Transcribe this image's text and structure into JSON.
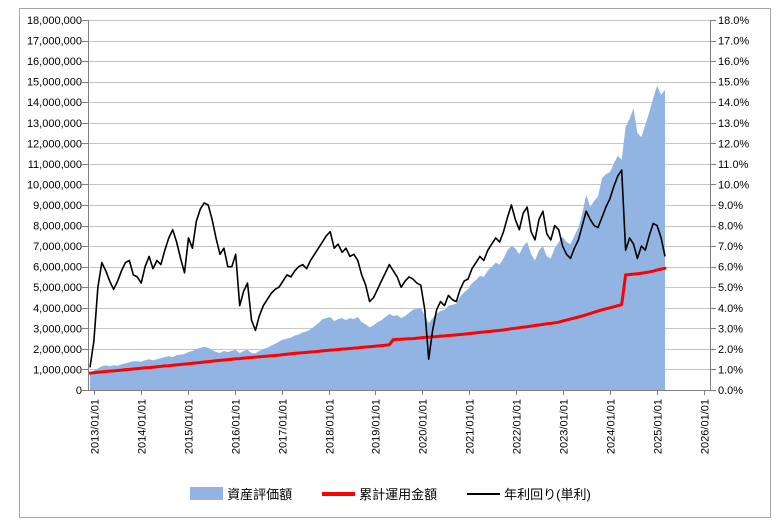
{
  "figure": {
    "kind": "excel-style combo chart",
    "background": "#FFFFFF",
    "border_color": "#A6A6A6"
  },
  "colors": {
    "area_fill": "#92B4E2",
    "invested_line": "#FF0000",
    "yield_line": "#000000",
    "gridline": "#C6C6C6",
    "axis_line": "#808080",
    "label_text": "#000000"
  },
  "chart_data": {
    "type": "area",
    "subtype": "area + 2 lines, dual y-axes",
    "grid": "horizontal",
    "legend_position": "bottom",
    "x": {
      "cadence": "monthly",
      "start": "2013-01",
      "end": "2025-03",
      "count": 147
    },
    "x_axis": {
      "tick_labels": [
        "2013/01/01",
        "2014/01/01",
        "2015/01/01",
        "2016/01/01",
        "2017/01/01",
        "2018/01/01",
        "2019/01/01",
        "2020/01/01",
        "2021/01/01",
        "2022/01/01",
        "2023/01/01",
        "2024/01/01",
        "2025/01/01",
        "2026/01/01"
      ],
      "label_rotation_deg": -90
    },
    "y_axis_left": {
      "min": 0,
      "max": 18000000,
      "step": 1000000,
      "unit": "JPY",
      "tick_labels": [
        "18,000,000",
        "17,000,000",
        "16,000,000",
        "15,000,000",
        "14,000,000",
        "13,000,000",
        "12,000,000",
        "11,000,000",
        "10,000,000",
        "9,000,000",
        "8,000,000",
        "7,000,000",
        "6,000,000",
        "5,000,000",
        "4,000,000",
        "3,000,000",
        "2,000,000",
        "1,000,000",
        "0"
      ]
    },
    "y_axis_right": {
      "min": 0,
      "max": 18,
      "step": 1,
      "unit": "%",
      "tick_labels": [
        "18.0%",
        "17.0%",
        "16.0%",
        "15.0%",
        "14.0%",
        "13.0%",
        "12.0%",
        "11.0%",
        "10.0%",
        "9.0%",
        "8.0%",
        "7.0%",
        "6.0%",
        "5.0%",
        "4.0%",
        "3.0%",
        "2.0%",
        "1.0%",
        "0.0%"
      ]
    },
    "values_unit_note": "area/red-line values in million JPY (left axis), yield values in percent (right axis)",
    "series": [
      {
        "name": "資産評価額",
        "type": "area",
        "axis": "left",
        "color": "#92B4E2",
        "values": [
          0.85,
          0.95,
          1.05,
          1.15,
          1.2,
          1.15,
          1.2,
          1.18,
          1.25,
          1.3,
          1.35,
          1.4,
          1.4,
          1.38,
          1.45,
          1.5,
          1.45,
          1.5,
          1.55,
          1.6,
          1.65,
          1.6,
          1.7,
          1.72,
          1.75,
          1.85,
          1.9,
          2.0,
          2.05,
          2.1,
          2.05,
          1.95,
          1.85,
          1.8,
          1.9,
          1.85,
          1.9,
          1.95,
          1.8,
          1.9,
          1.95,
          1.8,
          1.78,
          1.9,
          2.0,
          2.05,
          2.15,
          2.25,
          2.35,
          2.45,
          2.5,
          2.55,
          2.65,
          2.7,
          2.8,
          2.85,
          2.95,
          3.1,
          3.25,
          3.45,
          3.5,
          3.55,
          3.35,
          3.45,
          3.5,
          3.4,
          3.5,
          3.45,
          3.55,
          3.3,
          3.2,
          3.05,
          3.15,
          3.3,
          3.4,
          3.55,
          3.7,
          3.6,
          3.65,
          3.5,
          3.6,
          3.75,
          3.9,
          3.95,
          4.0,
          3.6,
          3.25,
          3.5,
          3.7,
          3.85,
          3.9,
          4.1,
          4.15,
          4.2,
          4.55,
          4.75,
          4.9,
          5.2,
          5.35,
          5.55,
          5.5,
          5.8,
          6.0,
          6.2,
          6.1,
          6.4,
          6.8,
          7.0,
          6.9,
          6.6,
          7.0,
          7.2,
          6.6,
          6.3,
          6.8,
          7.0,
          6.5,
          6.4,
          6.9,
          7.2,
          7.45,
          7.2,
          7.1,
          7.5,
          7.9,
          8.6,
          9.5,
          8.9,
          9.2,
          9.4,
          10.3,
          10.5,
          10.6,
          11.0,
          11.4,
          11.2,
          12.8,
          13.2,
          13.7,
          12.5,
          12.3,
          12.9,
          13.5,
          14.2,
          14.8,
          14.35,
          14.6
        ]
      },
      {
        "name": "累計運用金額",
        "type": "line",
        "axis": "left",
        "color": "#FF0000",
        "width": 3,
        "values": [
          0.82,
          0.84,
          0.86,
          0.88,
          0.9,
          0.92,
          0.93,
          0.95,
          0.97,
          0.99,
          1.0,
          1.02,
          1.04,
          1.06,
          1.08,
          1.09,
          1.11,
          1.13,
          1.15,
          1.17,
          1.18,
          1.2,
          1.22,
          1.24,
          1.26,
          1.28,
          1.3,
          1.32,
          1.34,
          1.36,
          1.38,
          1.4,
          1.42,
          1.44,
          1.46,
          1.48,
          1.5,
          1.52,
          1.53,
          1.55,
          1.57,
          1.58,
          1.6,
          1.62,
          1.63,
          1.65,
          1.67,
          1.68,
          1.7,
          1.72,
          1.74,
          1.76,
          1.78,
          1.8,
          1.81,
          1.83,
          1.85,
          1.86,
          1.88,
          1.9,
          1.92,
          1.94,
          1.95,
          1.97,
          1.99,
          2.0,
          2.02,
          2.04,
          2.05,
          2.07,
          2.09,
          2.1,
          2.12,
          2.14,
          2.16,
          2.18,
          2.2,
          2.45,
          2.46,
          2.47,
          2.48,
          2.49,
          2.5,
          2.52,
          2.54,
          2.56,
          2.57,
          2.59,
          2.6,
          2.62,
          2.63,
          2.65,
          2.66,
          2.68,
          2.7,
          2.72,
          2.74,
          2.76,
          2.78,
          2.8,
          2.82,
          2.84,
          2.86,
          2.88,
          2.9,
          2.92,
          2.95,
          2.98,
          3.0,
          3.03,
          3.06,
          3.08,
          3.11,
          3.14,
          3.16,
          3.19,
          3.22,
          3.24,
          3.27,
          3.3,
          3.35,
          3.4,
          3.45,
          3.5,
          3.55,
          3.6,
          3.66,
          3.72,
          3.78,
          3.84,
          3.9,
          3.95,
          4.0,
          4.05,
          4.1,
          4.15,
          5.6,
          5.62,
          5.64,
          5.66,
          5.68,
          5.71,
          5.74,
          5.78,
          5.84,
          5.88,
          5.92
        ]
      },
      {
        "name": "年利回り(単利)",
        "type": "line",
        "axis": "right",
        "color": "#000000",
        "width": 1.6,
        "values": [
          1.1,
          2.4,
          5.0,
          6.2,
          5.8,
          5.3,
          4.9,
          5.3,
          5.8,
          6.2,
          6.3,
          5.6,
          5.5,
          5.2,
          6.0,
          6.5,
          5.9,
          6.3,
          6.1,
          6.8,
          7.4,
          7.8,
          7.2,
          6.4,
          5.7,
          7.4,
          6.9,
          8.2,
          8.8,
          9.1,
          9.0,
          8.3,
          7.4,
          6.6,
          6.9,
          6.0,
          6.0,
          6.6,
          4.1,
          4.8,
          5.2,
          3.4,
          2.9,
          3.6,
          4.1,
          4.4,
          4.7,
          4.9,
          5.0,
          5.3,
          5.6,
          5.5,
          5.8,
          6.0,
          6.1,
          5.9,
          6.3,
          6.6,
          6.9,
          7.2,
          7.5,
          7.7,
          6.9,
          7.1,
          6.7,
          6.9,
          6.5,
          6.6,
          6.3,
          5.6,
          5.1,
          4.3,
          4.5,
          4.9,
          5.3,
          5.7,
          6.1,
          5.8,
          5.5,
          5.0,
          5.3,
          5.5,
          5.4,
          5.2,
          5.1,
          3.9,
          1.5,
          2.9,
          3.9,
          4.3,
          4.1,
          4.6,
          4.4,
          4.3,
          4.9,
          5.3,
          5.4,
          5.9,
          6.2,
          6.5,
          6.3,
          6.8,
          7.1,
          7.4,
          7.2,
          7.7,
          8.4,
          9.0,
          8.3,
          7.8,
          8.6,
          8.9,
          7.7,
          7.3,
          8.3,
          8.7,
          7.6,
          7.3,
          8.0,
          7.8,
          7.0,
          6.6,
          6.4,
          6.9,
          7.3,
          8.0,
          8.7,
          8.3,
          8.0,
          7.9,
          8.4,
          8.9,
          9.3,
          9.9,
          10.4,
          10.7,
          6.8,
          7.4,
          7.1,
          6.4,
          7.0,
          6.8,
          7.5,
          8.1,
          8.0,
          7.4,
          6.5
        ]
      }
    ]
  }
}
